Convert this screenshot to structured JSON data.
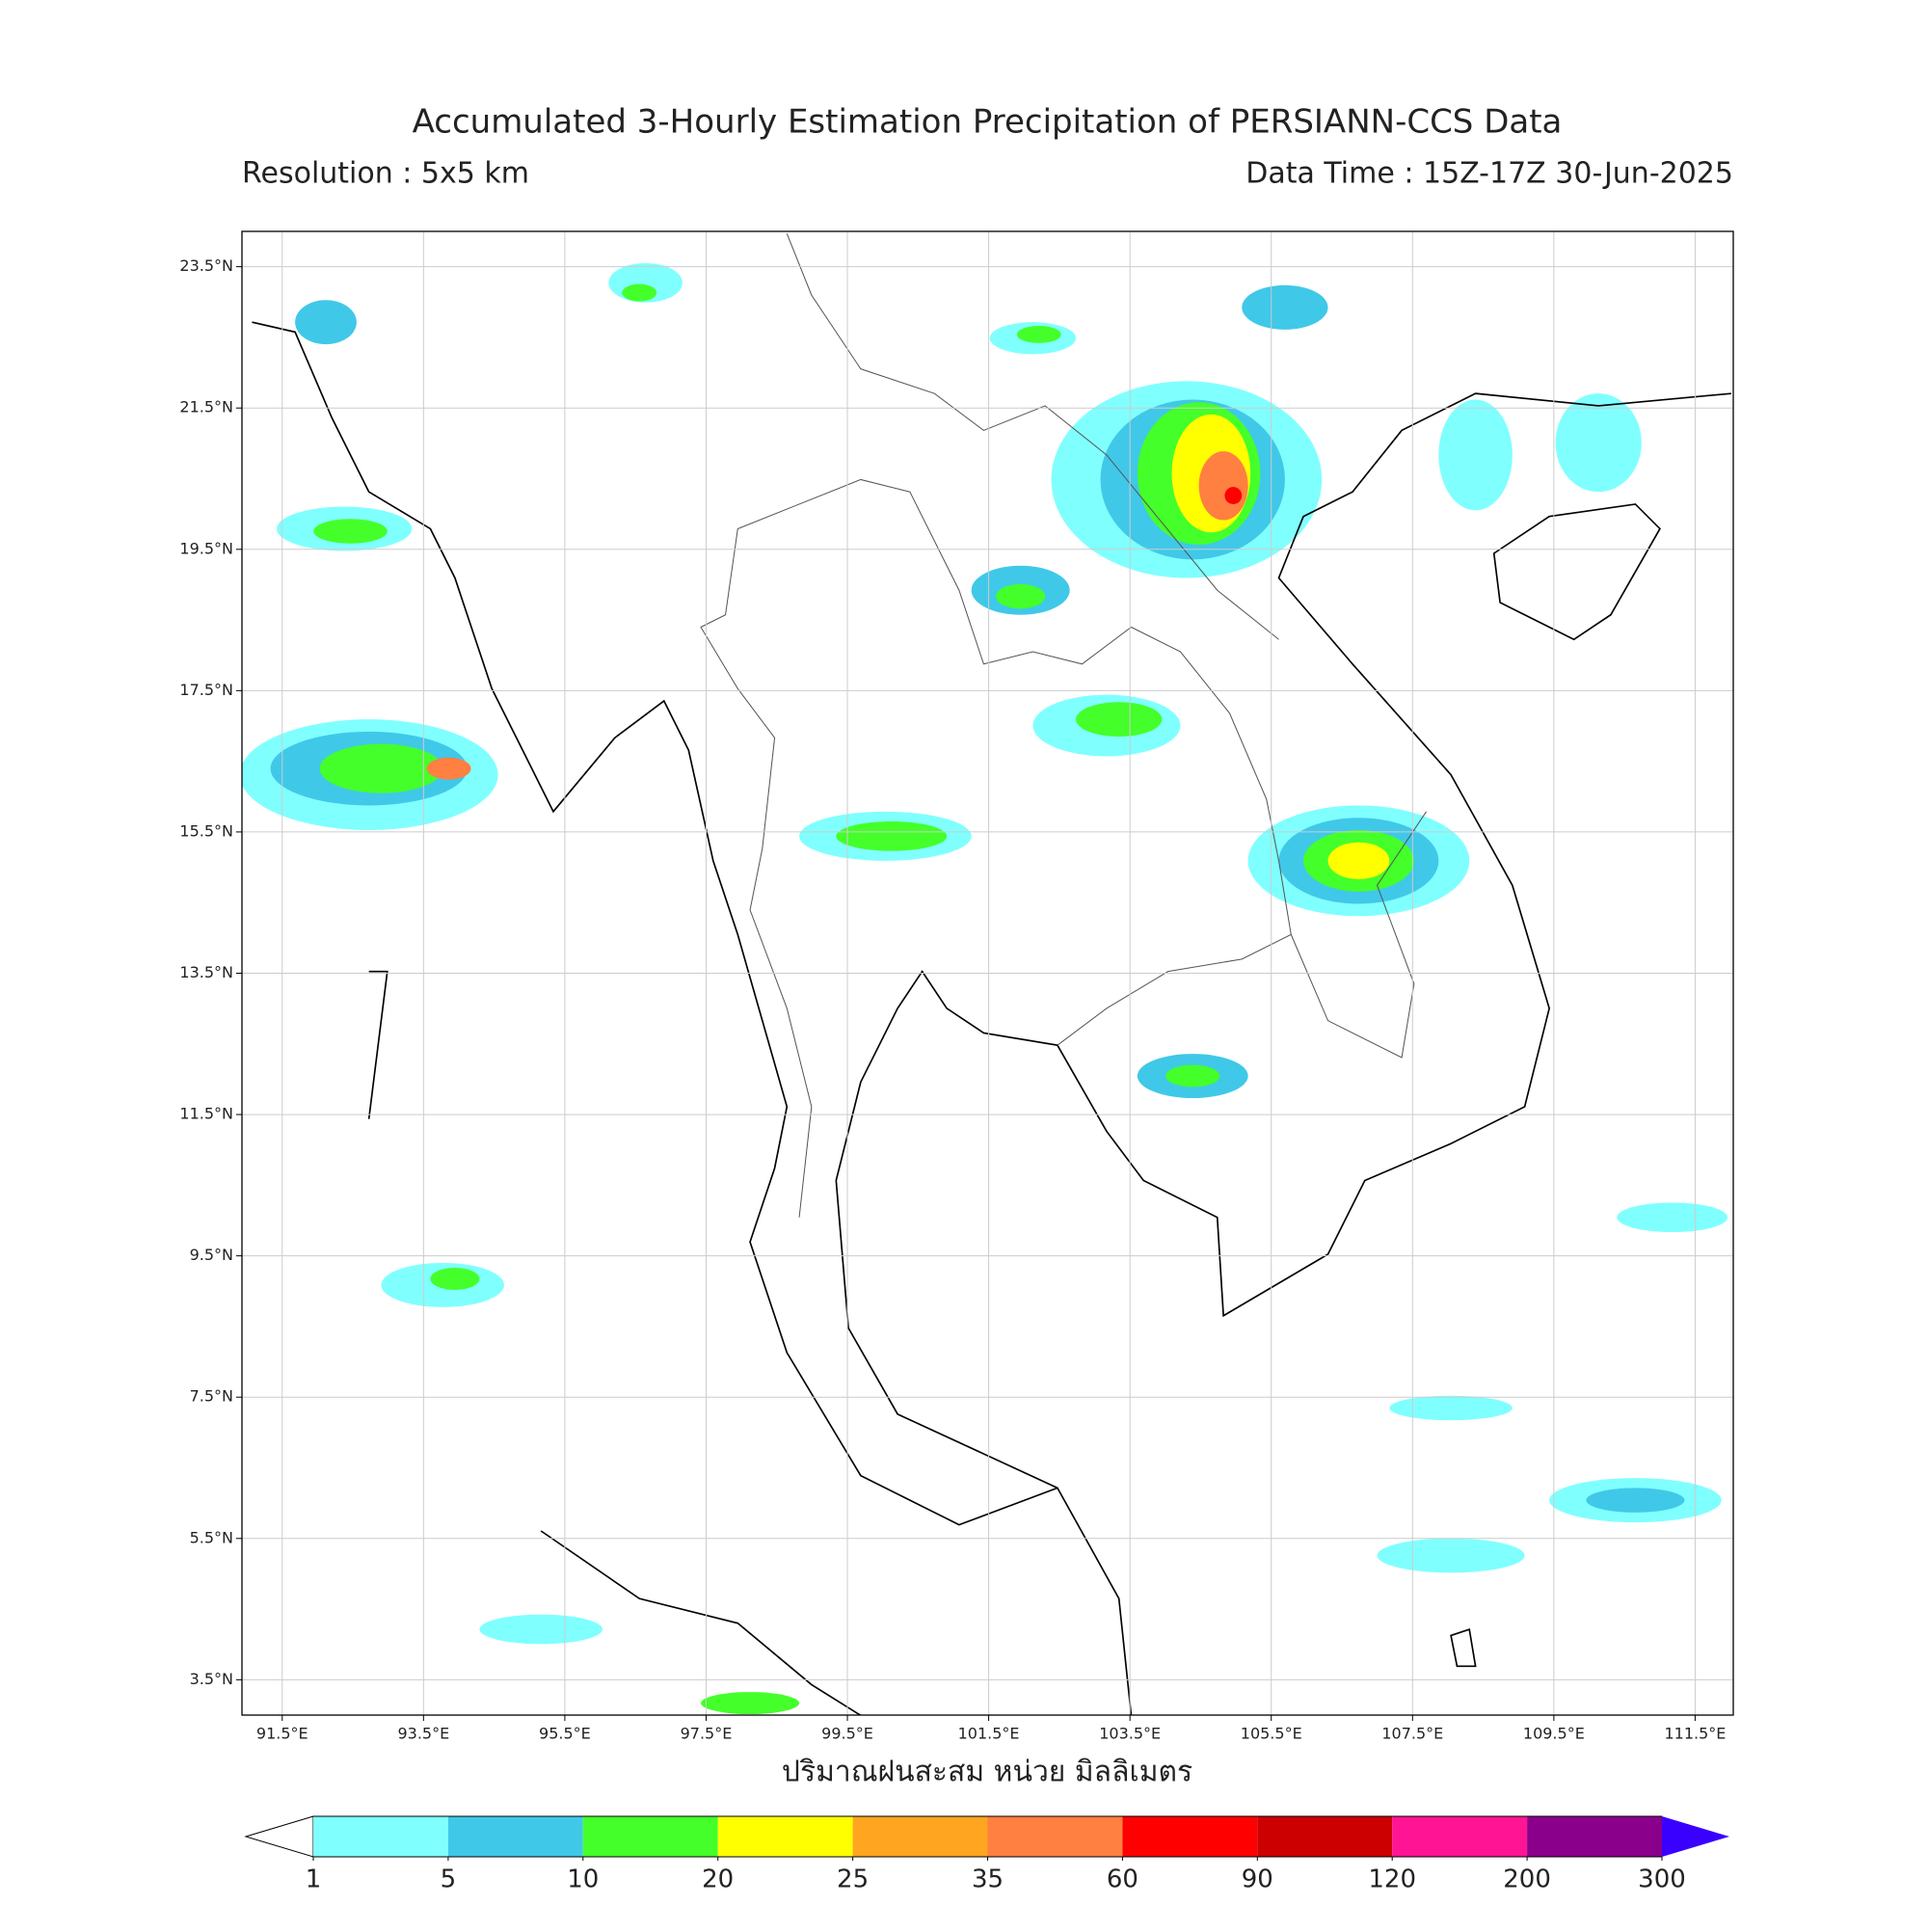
{
  "map": {
    "title": "Accumulated 3-Hourly Estimation Precipitation of PERSIANN-CCS Data",
    "resolution": "Resolution : 5x5 km",
    "data_time": "Data Time : 15Z-17Z 30-Jun-2025",
    "xlabel": "ปริมาณฝนสะสม หน่วย มิลลิเมตร",
    "xlim": [
      90.93,
      112.04
    ],
    "ylim": [
      3.0,
      24.0
    ],
    "xticks": [
      {
        "value": 91.5,
        "label": "91.5°E"
      },
      {
        "value": 93.5,
        "label": "93.5°E"
      },
      {
        "value": 95.5,
        "label": "95.5°E"
      },
      {
        "value": 97.5,
        "label": "97.5°E"
      },
      {
        "value": 99.5,
        "label": "99.5°E"
      },
      {
        "value": 101.5,
        "label": "101.5°E"
      },
      {
        "value": 103.5,
        "label": "103.5°E"
      },
      {
        "value": 105.5,
        "label": "105.5°E"
      },
      {
        "value": 107.5,
        "label": "107.5°E"
      },
      {
        "value": 109.5,
        "label": "109.5°E"
      },
      {
        "value": 111.5,
        "label": "111.5°E"
      }
    ],
    "yticks": [
      {
        "value": 23.5,
        "label": "23.5°N"
      },
      {
        "value": 21.5,
        "label": "21.5°N"
      },
      {
        "value": 19.5,
        "label": "19.5°N"
      },
      {
        "value": 17.5,
        "label": "17.5°N"
      },
      {
        "value": 15.5,
        "label": "15.5°N"
      },
      {
        "value": 13.5,
        "label": "13.5°N"
      },
      {
        "value": 11.5,
        "label": "11.5°N"
      },
      {
        "value": 9.5,
        "label": "9.5°N"
      },
      {
        "value": 7.5,
        "label": "7.5°N"
      },
      {
        "value": 5.5,
        "label": "5.5°N"
      },
      {
        "value": 3.5,
        "label": "3.5°N"
      }
    ],
    "grid": true,
    "colorbar": {
      "levels": [
        1,
        5,
        10,
        20,
        25,
        35,
        60,
        90,
        120,
        200,
        300
      ],
      "colors": [
        "#80ffff",
        "#40c8e8",
        "#44ff2a",
        "#ffff00",
        "#ffa520",
        "#ff8040",
        "#ff0000",
        "#cc0000",
        "#ff1493",
        "#8b008b"
      ],
      "under_color": "#ffffff",
      "over_color": "#3a00ff"
    }
  }
}
